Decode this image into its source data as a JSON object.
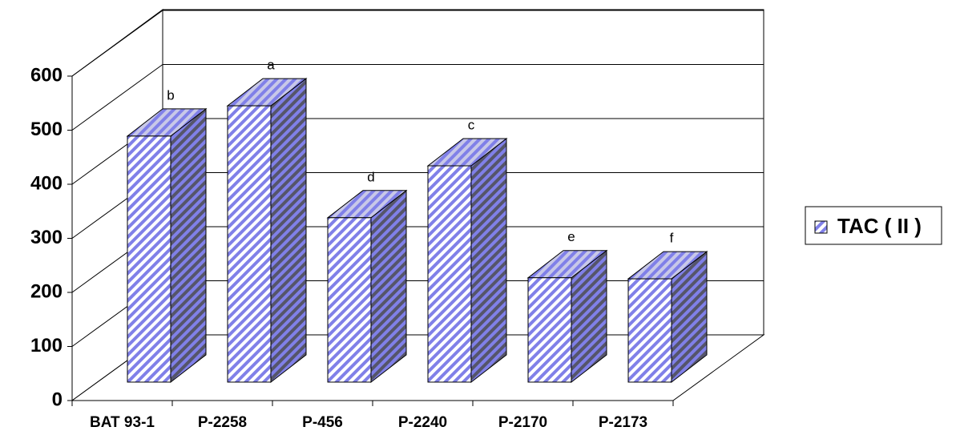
{
  "chart_data": {
    "type": "bar3d",
    "categories": [
      "BAT 93-1",
      "P-2258",
      "P-456",
      "P-2240",
      "P-2170",
      "P-2173"
    ],
    "series": [
      {
        "name": "TAC ( II )",
        "color": "#8080e8",
        "values": [
          455,
          511,
          304,
          400,
          193,
          191
        ]
      }
    ],
    "annotations": [
      "b",
      "a",
      "d",
      "c",
      "e",
      "f"
    ],
    "ylim": [
      0,
      600
    ],
    "yticks": [
      0,
      100,
      200,
      300,
      400,
      500,
      600
    ],
    "grid": true,
    "legend": "right"
  }
}
